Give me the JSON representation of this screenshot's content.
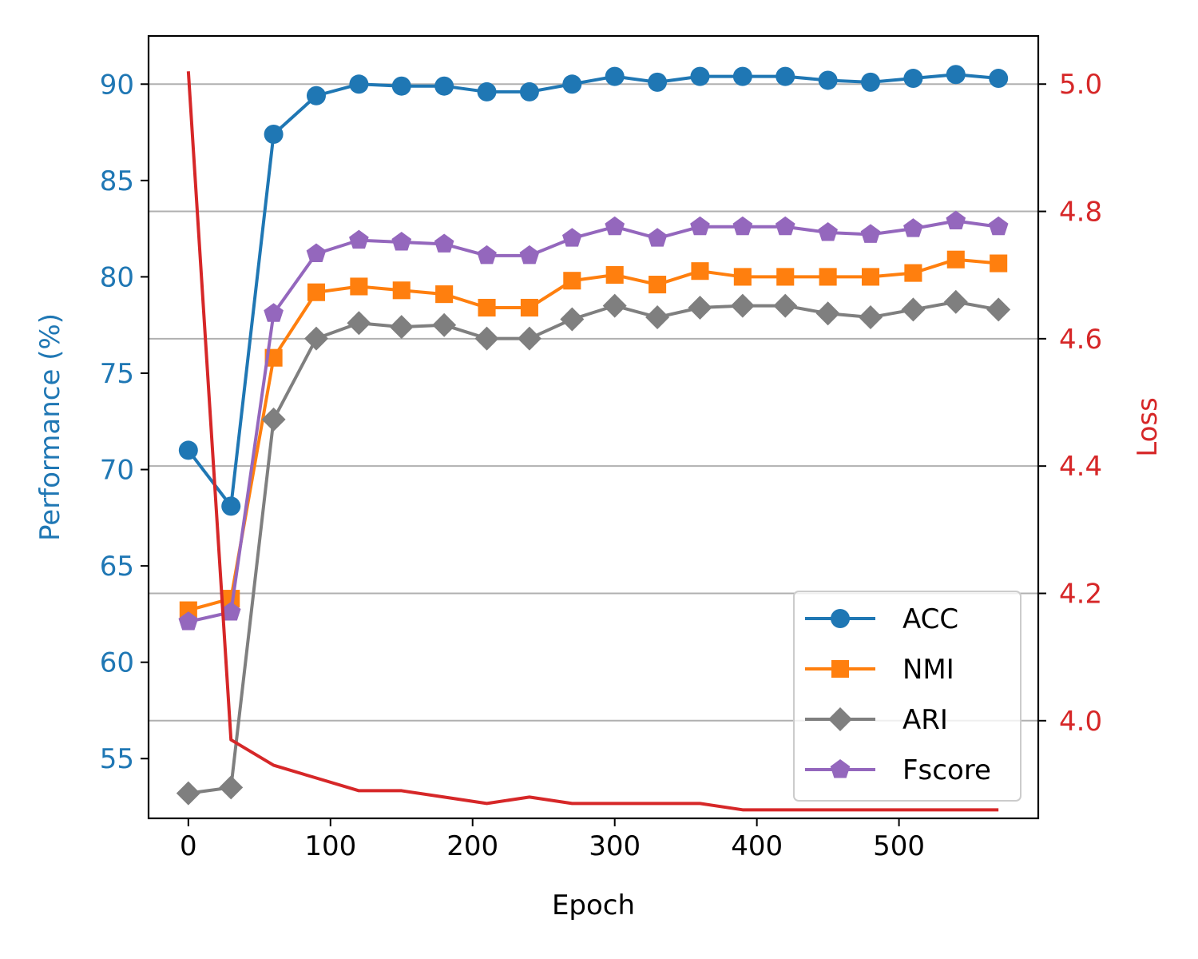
{
  "chart_data": {
    "type": "line",
    "title": "",
    "xlabel": "Epoch",
    "ylabel_left": "Performance (%)",
    "ylabel_right": "Loss",
    "xlim": [
      -28,
      598
    ],
    "ylim_left": [
      51.9,
      92.5
    ],
    "ylim_right": [
      3.8466,
      5.0756
    ],
    "x_ticks": [
      0,
      100,
      200,
      300,
      400,
      500
    ],
    "y_left_ticks": [
      55,
      60,
      65,
      70,
      75,
      80,
      85,
      90
    ],
    "y_right_ticks": [
      4.0,
      4.2,
      4.4,
      4.6,
      4.8,
      5.0
    ],
    "grid": "horizontal, right axis",
    "legend_position": "lower-right",
    "x": [
      0,
      30,
      60,
      90,
      120,
      150,
      180,
      210,
      240,
      270,
      300,
      330,
      360,
      390,
      420,
      450,
      480,
      510,
      540,
      570
    ],
    "series": [
      {
        "name": "ACC",
        "axis": "left",
        "color": "#1f77b4",
        "marker": "circle",
        "values": [
          71.0,
          68.1,
          87.4,
          89.4,
          90.0,
          89.9,
          89.9,
          89.6,
          89.6,
          90.0,
          90.4,
          90.1,
          90.4,
          90.4,
          90.4,
          90.2,
          90.1,
          90.3,
          90.5,
          90.3
        ]
      },
      {
        "name": "NMI",
        "axis": "left",
        "color": "#ff7f0e",
        "marker": "square",
        "values": [
          62.7,
          63.3,
          75.8,
          79.2,
          79.5,
          79.3,
          79.1,
          78.4,
          78.4,
          79.8,
          80.1,
          79.6,
          80.3,
          80.0,
          80.0,
          80.0,
          80.0,
          80.2,
          80.9,
          80.7
        ]
      },
      {
        "name": "ARI",
        "axis": "left",
        "color": "#7f7f7f",
        "marker": "diamond",
        "values": [
          53.2,
          53.5,
          72.6,
          76.8,
          77.6,
          77.4,
          77.5,
          76.8,
          76.8,
          77.8,
          78.5,
          77.9,
          78.4,
          78.5,
          78.5,
          78.1,
          77.9,
          78.3,
          78.7,
          78.3
        ]
      },
      {
        "name": "Fscore",
        "axis": "left",
        "color": "#9467bd",
        "marker": "pentagon",
        "values": [
          62.1,
          62.6,
          78.1,
          81.2,
          81.9,
          81.8,
          81.7,
          81.1,
          81.1,
          82.0,
          82.6,
          82.0,
          82.6,
          82.6,
          82.6,
          82.3,
          82.2,
          82.5,
          82.9,
          82.6
        ]
      },
      {
        "name": "Loss",
        "axis": "right",
        "color": "#d62728",
        "marker": "none",
        "values": [
          5.02,
          3.97,
          3.93,
          3.91,
          3.89,
          3.89,
          3.88,
          3.87,
          3.88,
          3.87,
          3.87,
          3.87,
          3.87,
          3.86,
          3.86,
          3.86,
          3.86,
          3.86,
          3.86,
          3.86
        ]
      }
    ],
    "legend_entries": [
      "ACC",
      "NMI",
      "ARI",
      "Fscore"
    ],
    "colors": {
      "left_axis": "#1f77b4",
      "right_axis": "#d62728",
      "grid": "#b0b0b0",
      "frame": "#000000"
    }
  }
}
